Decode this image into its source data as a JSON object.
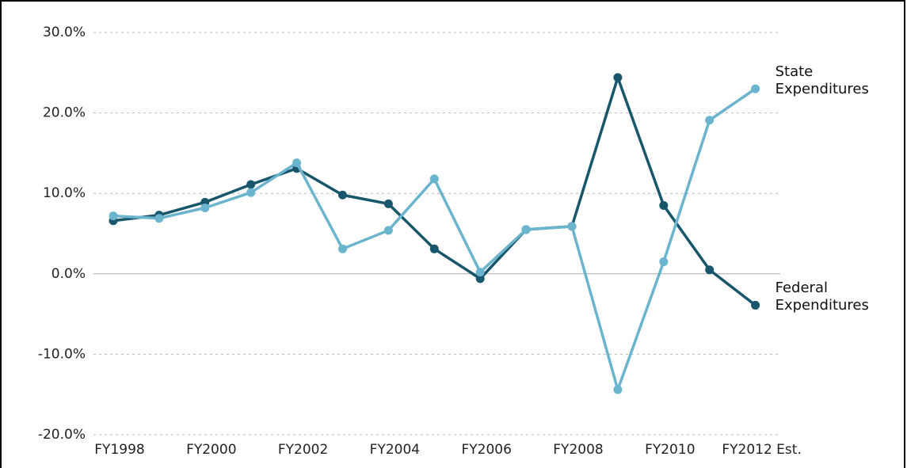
{
  "chart_data": {
    "type": "line",
    "categories": [
      "FY1998",
      null,
      "FY2000",
      null,
      "FY2002",
      null,
      "FY2004",
      null,
      "FY2006",
      null,
      "FY2008",
      null,
      "FY2010",
      null,
      "FY2012 Est."
    ],
    "series": [
      {
        "name": "Federal Expenditures",
        "color": "#17566b",
        "values": [
          6.6,
          7.3,
          8.9,
          11.1,
          13.1,
          9.8,
          8.7,
          3.1,
          -0.6,
          5.5,
          5.9,
          24.4,
          8.5,
          0.5,
          -3.9
        ]
      },
      {
        "name": "State Expenditures",
        "color": "#6ab4cd",
        "values": [
          7.2,
          6.9,
          8.2,
          10.1,
          13.8,
          3.1,
          5.4,
          11.8,
          0.2,
          5.5,
          5.9,
          -14.4,
          1.5,
          19.1,
          23.0
        ]
      }
    ],
    "ylim": [
      -20,
      30
    ],
    "yticks": [
      {
        "value": -20,
        "label": "-20.0%"
      },
      {
        "value": -10,
        "label": "-10.0%"
      },
      {
        "value": 0,
        "label": "0.0%"
      },
      {
        "value": 10,
        "label": "10.0%"
      },
      {
        "value": 20,
        "label": "20.0%"
      },
      {
        "value": 30,
        "label": "30.0%"
      }
    ],
    "grid": true
  }
}
